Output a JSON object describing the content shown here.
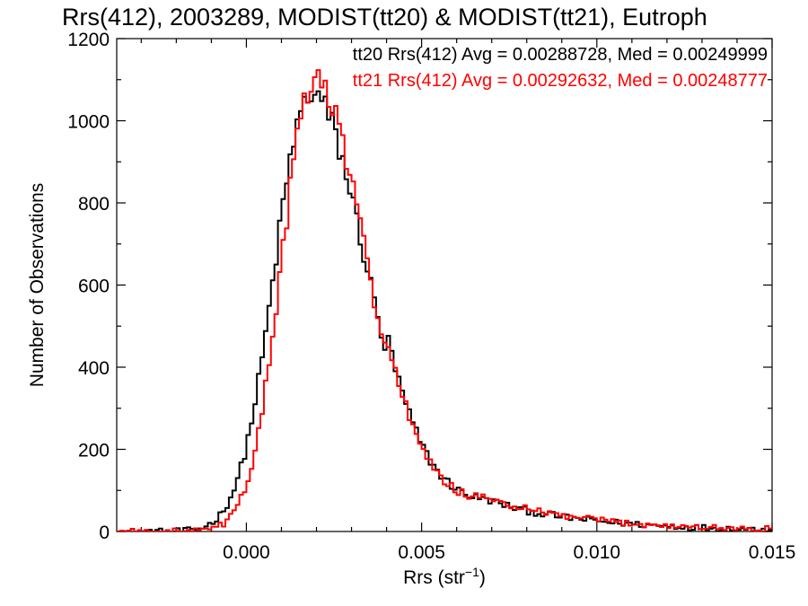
{
  "chart_data": {
    "type": "histogram",
    "title": "Rrs(412), 2003289, MODIST(tt20) & MODIST(tt21), Eutroph",
    "xlabel_main": "Rrs (str",
    "xlabel_sup": "−1",
    "xlabel_end": ")",
    "ylabel": "Number of Observations",
    "xlim": [
      -0.0037,
      0.015
    ],
    "ylim": [
      0,
      1200
    ],
    "x_ticks": [
      0.0,
      0.005,
      0.01,
      0.015
    ],
    "x_tick_labels": [
      "0.000",
      "0.005",
      "0.010",
      "0.015"
    ],
    "y_ticks": [
      0,
      200,
      400,
      600,
      800,
      1000,
      1200
    ],
    "y_tick_labels": [
      "0",
      "200",
      "400",
      "600",
      "800",
      "1000",
      "1200"
    ],
    "bin_width": 0.0001,
    "series": [
      {
        "name": "tt20",
        "legend": "tt20 Rrs(412) Avg = 0.00288728, Med = 0.00249999",
        "color": "#000000",
        "shape": {
          "peak_x": 0.0018,
          "peak_y": 1050,
          "sigma_left": 0.001,
          "sigma_right": 0.0016,
          "tail_amp": 70,
          "tail_center": 0.007,
          "tail_decay": 0.003
        }
      },
      {
        "name": "tt21",
        "legend": "tt21 Rrs(412) Avg = 0.00292632, Med = 0.00248777",
        "color": "#ff0000",
        "shape": {
          "peak_x": 0.0019,
          "peak_y": 1080,
          "sigma_left": 0.0009,
          "sigma_right": 0.0015,
          "tail_amp": 75,
          "tail_center": 0.007,
          "tail_decay": 0.003
        }
      }
    ]
  }
}
